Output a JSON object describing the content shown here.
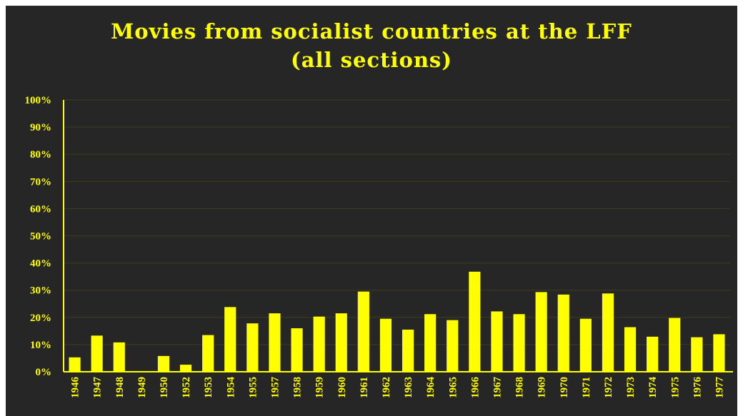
{
  "chart_data": {
    "type": "bar",
    "title": "Movies from socialist countries at the LFF",
    "subtitle": "(all sections)",
    "xlabel": "",
    "ylabel": "",
    "ylim": [
      0,
      100
    ],
    "yticks": [
      "0%",
      "10%",
      "20%",
      "30%",
      "40%",
      "50%",
      "60%",
      "70%",
      "80%",
      "90%",
      "100%"
    ],
    "grid": true,
    "legend": "none",
    "categories": [
      "1946",
      "1947",
      "1948",
      "1949",
      "1950",
      "1952",
      "1953",
      "1954",
      "1955",
      "1957",
      "1958",
      "1959",
      "1960",
      "1961",
      "1962",
      "1963",
      "1964",
      "1965",
      "1966",
      "1967",
      "1968",
      "1969",
      "1970",
      "1971",
      "1972",
      "1973",
      "1974",
      "1975",
      "1976",
      "1977"
    ],
    "values": [
      5.3,
      13.3,
      10.8,
      0,
      5.8,
      2.6,
      13.5,
      23.8,
      17.8,
      21.5,
      16.0,
      20.3,
      21.5,
      29.5,
      19.5,
      15.5,
      21.2,
      19.0,
      36.8,
      22.2,
      21.2,
      29.3,
      28.4,
      19.5,
      28.8,
      16.4,
      12.9,
      19.8,
      12.7,
      13.8
    ],
    "colors": {
      "bar": "#ffff00",
      "text": "#ffff00",
      "background": "#262626",
      "grid": "#3d3d1e"
    }
  }
}
